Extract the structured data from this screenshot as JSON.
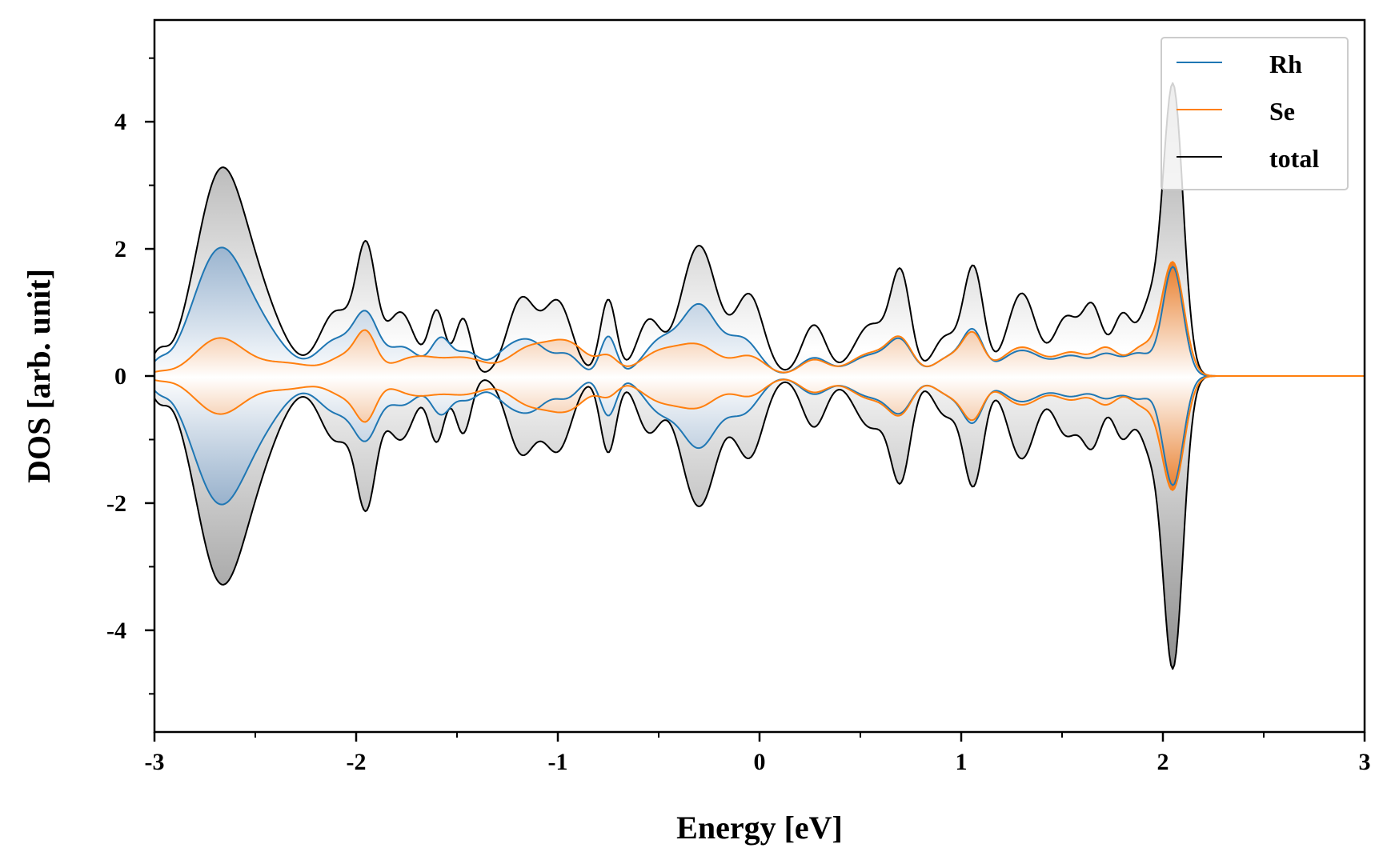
{
  "chart_data": {
    "type": "line",
    "title": "",
    "xlabel": "Energy [eV]",
    "ylabel": "DOS [arb. unit]",
    "xlim": [
      -3,
      3
    ],
    "ylim": [
      -5.6,
      5.6
    ],
    "xticks": [
      -3,
      -2,
      -1,
      0,
      1,
      2,
      3
    ],
    "xtick_labels": [
      "-3",
      "-2",
      "-1",
      "0",
      "1",
      "2",
      "3"
    ],
    "yticks": [
      -4,
      -2,
      0,
      2,
      4
    ],
    "ytick_labels": [
      "-4",
      "-2",
      "0",
      "2",
      "4"
    ],
    "mirrored": true,
    "legend_position": "top-right",
    "colors": {
      "Rh": "#1f77b4",
      "Se": "#ff7f0e",
      "total": "#000000"
    },
    "series": [
      {
        "name": "Rh",
        "peaks": [
          {
            "e": -2.98,
            "h": 0.15,
            "w": 0.04
          },
          {
            "e": -2.68,
            "h": 1.93,
            "w": 0.13
          },
          {
            "e": -2.45,
            "h": 0.52,
            "w": 0.12
          },
          {
            "e": -2.1,
            "h": 0.55,
            "w": 0.09
          },
          {
            "e": -1.95,
            "h": 0.85,
            "w": 0.06
          },
          {
            "e": -1.77,
            "h": 0.45,
            "w": 0.08
          },
          {
            "e": -1.58,
            "h": 0.55,
            "w": 0.05
          },
          {
            "e": -1.45,
            "h": 0.35,
            "w": 0.06
          },
          {
            "e": -1.25,
            "h": 0.35,
            "w": 0.08
          },
          {
            "e": -1.12,
            "h": 0.45,
            "w": 0.08
          },
          {
            "e": -0.95,
            "h": 0.3,
            "w": 0.06
          },
          {
            "e": -0.75,
            "h": 0.62,
            "w": 0.04
          },
          {
            "e": -0.5,
            "h": 0.5,
            "w": 0.08
          },
          {
            "e": -0.3,
            "h": 1.1,
            "w": 0.09
          },
          {
            "e": -0.08,
            "h": 0.55,
            "w": 0.08
          },
          {
            "e": 0.27,
            "h": 0.28,
            "w": 0.07
          },
          {
            "e": 0.55,
            "h": 0.32,
            "w": 0.1
          },
          {
            "e": 0.7,
            "h": 0.48,
            "w": 0.06
          },
          {
            "e": 0.95,
            "h": 0.3,
            "w": 0.08
          },
          {
            "e": 1.06,
            "h": 0.6,
            "w": 0.05
          },
          {
            "e": 1.3,
            "h": 0.4,
            "w": 0.1
          },
          {
            "e": 1.55,
            "h": 0.3,
            "w": 0.08
          },
          {
            "e": 1.72,
            "h": 0.3,
            "w": 0.06
          },
          {
            "e": 1.88,
            "h": 0.35,
            "w": 0.07
          },
          {
            "e": 2.05,
            "h": 1.7,
            "w": 0.05
          }
        ]
      },
      {
        "name": "Se",
        "peaks": [
          {
            "e": -2.98,
            "h": 0.05,
            "w": 0.05
          },
          {
            "e": -2.68,
            "h": 0.58,
            "w": 0.12
          },
          {
            "e": -2.35,
            "h": 0.2,
            "w": 0.15
          },
          {
            "e": -2.05,
            "h": 0.28,
            "w": 0.08
          },
          {
            "e": -1.95,
            "h": 0.55,
            "w": 0.05
          },
          {
            "e": -1.7,
            "h": 0.3,
            "w": 0.12
          },
          {
            "e": -1.45,
            "h": 0.25,
            "w": 0.1
          },
          {
            "e": -1.15,
            "h": 0.4,
            "w": 0.1
          },
          {
            "e": -0.95,
            "h": 0.5,
            "w": 0.1
          },
          {
            "e": -0.75,
            "h": 0.25,
            "w": 0.05
          },
          {
            "e": -0.5,
            "h": 0.35,
            "w": 0.1
          },
          {
            "e": -0.3,
            "h": 0.45,
            "w": 0.1
          },
          {
            "e": -0.05,
            "h": 0.3,
            "w": 0.08
          },
          {
            "e": 0.27,
            "h": 0.25,
            "w": 0.07
          },
          {
            "e": 0.55,
            "h": 0.35,
            "w": 0.1
          },
          {
            "e": 0.7,
            "h": 0.5,
            "w": 0.06
          },
          {
            "e": 0.95,
            "h": 0.3,
            "w": 0.08
          },
          {
            "e": 1.06,
            "h": 0.55,
            "w": 0.05
          },
          {
            "e": 1.3,
            "h": 0.45,
            "w": 0.1
          },
          {
            "e": 1.55,
            "h": 0.35,
            "w": 0.08
          },
          {
            "e": 1.72,
            "h": 0.4,
            "w": 0.06
          },
          {
            "e": 1.9,
            "h": 0.45,
            "w": 0.07
          },
          {
            "e": 2.05,
            "h": 1.75,
            "w": 0.055
          }
        ]
      },
      {
        "name": "total",
        "peaks": [
          {
            "e": -2.98,
            "h": 0.3,
            "w": 0.04
          },
          {
            "e": -2.68,
            "h": 3.0,
            "w": 0.12
          },
          {
            "e": -2.48,
            "h": 1.0,
            "w": 0.12
          },
          {
            "e": -2.1,
            "h": 1.0,
            "w": 0.08
          },
          {
            "e": -1.95,
            "h": 1.9,
            "w": 0.05
          },
          {
            "e": -1.78,
            "h": 1.0,
            "w": 0.07
          },
          {
            "e": -1.6,
            "h": 1.0,
            "w": 0.04
          },
          {
            "e": -1.47,
            "h": 0.9,
            "w": 0.04
          },
          {
            "e": -1.18,
            "h": 1.2,
            "w": 0.07
          },
          {
            "e": -1.0,
            "h": 1.15,
            "w": 0.07
          },
          {
            "e": -0.75,
            "h": 1.2,
            "w": 0.04
          },
          {
            "e": -0.55,
            "h": 0.85,
            "w": 0.06
          },
          {
            "e": -0.3,
            "h": 2.05,
            "w": 0.09
          },
          {
            "e": -0.05,
            "h": 1.25,
            "w": 0.07
          },
          {
            "e": 0.27,
            "h": 0.8,
            "w": 0.06
          },
          {
            "e": 0.55,
            "h": 0.8,
            "w": 0.08
          },
          {
            "e": 0.7,
            "h": 1.55,
            "w": 0.05
          },
          {
            "e": 0.92,
            "h": 0.6,
            "w": 0.06
          },
          {
            "e": 1.06,
            "h": 1.7,
            "w": 0.05
          },
          {
            "e": 1.3,
            "h": 1.3,
            "w": 0.07
          },
          {
            "e": 1.52,
            "h": 0.9,
            "w": 0.06
          },
          {
            "e": 1.65,
            "h": 1.05,
            "w": 0.05
          },
          {
            "e": 1.8,
            "h": 0.95,
            "w": 0.05
          },
          {
            "e": 1.93,
            "h": 1.0,
            "w": 0.05
          },
          {
            "e": 2.05,
            "h": 4.55,
            "w": 0.05
          }
        ]
      }
    ]
  },
  "legend": {
    "items": [
      {
        "label": "Rh",
        "color": "#1f77b4"
      },
      {
        "label": "Se",
        "color": "#ff7f0e"
      },
      {
        "label": "total",
        "color": "#000000"
      }
    ]
  }
}
